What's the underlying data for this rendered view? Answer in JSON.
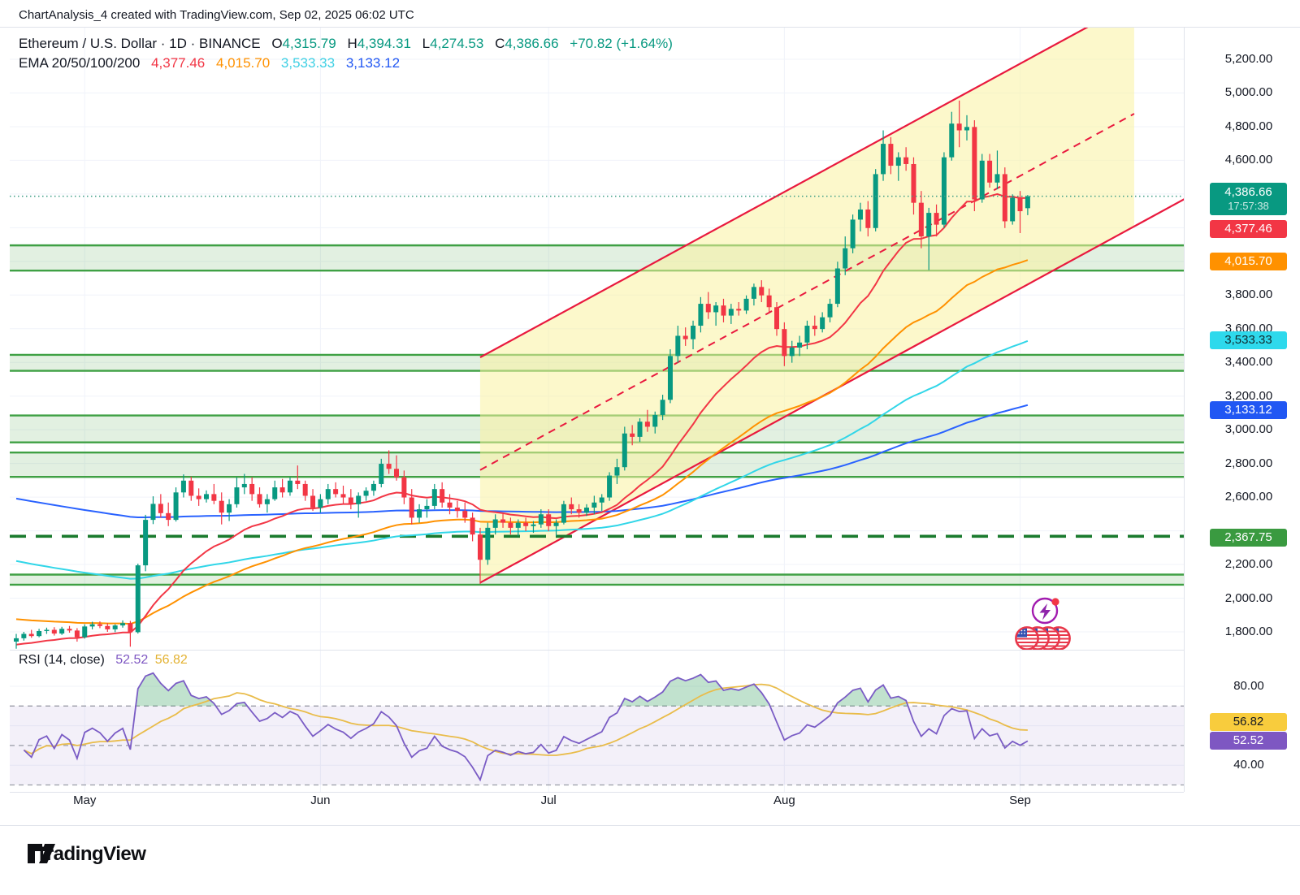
{
  "header": {
    "title": "ChartAnalysis_4 created with TradingView.com, Sep 02, 2025 06:02 UTC"
  },
  "legend": {
    "symbol": "Ethereum / U.S. Dollar · 1D · BINANCE",
    "o_label": "O",
    "o": "4,315.79",
    "h_label": "H",
    "h": "4,394.31",
    "l_label": "L",
    "l": "4,274.53",
    "c_label": "C",
    "c": "4,386.66",
    "change": "+70.82 (+1.64%)",
    "ema_label": "EMA 20/50/100/200",
    "ema20": "4,377.46",
    "ema50": "4,015.70",
    "ema100": "3,533.33",
    "ema200": "3,133.12"
  },
  "rsi_legend": {
    "label": "RSI (14, close)",
    "rsi": "52.52",
    "rsi_ma": "56.82"
  },
  "price_axis": {
    "ticks": [
      "5,200.00",
      "5,000.00",
      "4,800.00",
      "4,600.00",
      "3,800.00",
      "3,600.00",
      "3,400.00",
      "3,200.00",
      "3,000.00",
      "2,800.00",
      "2,600.00",
      "2,200.00",
      "2,000.00",
      "1,800.00"
    ],
    "badges": {
      "last": {
        "value": "4,386.66",
        "countdown": "17:57:38",
        "color": "#089981",
        "text": "#ffffff"
      },
      "ema20": {
        "value": "4,377.46",
        "color": "#f23645",
        "text": "#ffffff"
      },
      "ema50": {
        "value": "4,015.70",
        "color": "#ff9100",
        "text": "#ffffff"
      },
      "ema100": {
        "value": "3,533.33",
        "color": "#2ed9ec",
        "text": "#102a2e"
      },
      "ema200": {
        "value": "3,133.12",
        "color": "#2157f3",
        "text": "#ffffff"
      },
      "support": {
        "value": "2,367.75",
        "color": "#3a9a40",
        "text": "#ffffff"
      },
      "rsi_ma": {
        "value": "56.82",
        "color": "#f8cc3d",
        "text": "#131722"
      },
      "rsi": {
        "value": "52.52",
        "color": "#7e57c2",
        "text": "#ffffff"
      }
    }
  },
  "rsi_axis": {
    "ticks": [
      "80.00",
      "40.00"
    ]
  },
  "footer": {
    "brand": "TradingView"
  },
  "chart_data": {
    "type": "candlestick",
    "symbol": "ETHUSD",
    "exchange": "BINANCE",
    "interval": "1D",
    "start_date": "2025-04-22",
    "ylim": [
      1800,
      5200
    ],
    "last_price": 4386.66,
    "months": [
      {
        "label": "May",
        "i": 9
      },
      {
        "label": "Jun",
        "i": 40
      },
      {
        "label": "Jul",
        "i": 70
      },
      {
        "label": "Aug",
        "i": 101
      },
      {
        "label": "Sep",
        "i": 132
      }
    ],
    "grid_step": 200,
    "up_color": "#089981",
    "down_color": "#f23645",
    "support_zones": [
      [
        3945,
        4095
      ],
      [
        3350,
        3445
      ],
      [
        2925,
        3085
      ],
      [
        2720,
        2865
      ],
      [
        2080,
        2140
      ]
    ],
    "dashed_support_level": 2367.75,
    "channel": {
      "start_index": 61,
      "lower_start_price": 2092,
      "upper_start_price": 3430,
      "slope_per_day": 24.6,
      "fill_end_index": 147,
      "line_end_index": 154,
      "line_color": "#e9193e",
      "fill_color": "rgba(250,242,160,0.55)"
    },
    "ema_periods": [
      20,
      50,
      100,
      200
    ],
    "ema_seeds": [
      1720,
      1880,
      2230,
      2600
    ],
    "ema_colors": [
      "#f23645",
      "#ff9100",
      "#31d6e8",
      "#2962ff"
    ],
    "rsi": {
      "period": 14,
      "overbought": 70,
      "midline": 50,
      "oversold": 30,
      "line_color": "#7a5cc5",
      "ma_color": "#e9bc4a",
      "seed_gain": 4.2,
      "seed_loss": 6.8
    },
    "candles": [
      [
        1742,
        1788,
        1700,
        1762
      ],
      [
        1762,
        1800,
        1748,
        1788
      ],
      [
        1788,
        1812,
        1765,
        1775
      ],
      [
        1775,
        1818,
        1768,
        1805
      ],
      [
        1805,
        1825,
        1788,
        1812
      ],
      [
        1812,
        1828,
        1778,
        1790
      ],
      [
        1790,
        1830,
        1782,
        1818
      ],
      [
        1818,
        1835,
        1795,
        1808
      ],
      [
        1808,
        1822,
        1742,
        1768
      ],
      [
        1768,
        1845,
        1760,
        1832
      ],
      [
        1832,
        1860,
        1815,
        1845
      ],
      [
        1845,
        1862,
        1822,
        1835
      ],
      [
        1835,
        1852,
        1800,
        1815
      ],
      [
        1815,
        1845,
        1798,
        1838
      ],
      [
        1838,
        1868,
        1825,
        1852
      ],
      [
        1852,
        1865,
        1712,
        1798
      ],
      [
        1798,
        2205,
        1790,
        2195
      ],
      [
        2195,
        2495,
        2160,
        2465
      ],
      [
        2465,
        2605,
        2440,
        2560
      ],
      [
        2560,
        2618,
        2478,
        2505
      ],
      [
        2505,
        2568,
        2428,
        2465
      ],
      [
        2465,
        2658,
        2455,
        2628
      ],
      [
        2628,
        2735,
        2598,
        2698
      ],
      [
        2698,
        2722,
        2578,
        2608
      ],
      [
        2608,
        2652,
        2548,
        2588
      ],
      [
        2588,
        2640,
        2568,
        2618
      ],
      [
        2618,
        2678,
        2558,
        2578
      ],
      [
        2578,
        2628,
        2438,
        2508
      ],
      [
        2508,
        2588,
        2458,
        2558
      ],
      [
        2558,
        2718,
        2538,
        2658
      ],
      [
        2658,
        2738,
        2618,
        2678
      ],
      [
        2678,
        2718,
        2578,
        2618
      ],
      [
        2618,
        2658,
        2538,
        2558
      ],
      [
        2558,
        2618,
        2508,
        2588
      ],
      [
        2588,
        2698,
        2578,
        2658
      ],
      [
        2658,
        2708,
        2598,
        2628
      ],
      [
        2628,
        2718,
        2608,
        2698
      ],
      [
        2698,
        2788,
        2648,
        2678
      ],
      [
        2678,
        2698,
        2578,
        2608
      ],
      [
        2608,
        2648,
        2518,
        2538
      ],
      [
        2538,
        2618,
        2508,
        2588
      ],
      [
        2588,
        2678,
        2558,
        2648
      ],
      [
        2648,
        2688,
        2598,
        2618
      ],
      [
        2618,
        2668,
        2558,
        2598
      ],
      [
        2598,
        2648,
        2528,
        2558
      ],
      [
        2558,
        2628,
        2478,
        2608
      ],
      [
        2608,
        2658,
        2578,
        2638
      ],
      [
        2638,
        2698,
        2608,
        2678
      ],
      [
        2678,
        2828,
        2658,
        2798
      ],
      [
        2798,
        2878,
        2738,
        2768
      ],
      [
        2768,
        2848,
        2698,
        2718
      ],
      [
        2718,
        2758,
        2558,
        2598
      ],
      [
        2598,
        2648,
        2438,
        2478
      ],
      [
        2478,
        2558,
        2448,
        2528
      ],
      [
        2528,
        2588,
        2478,
        2548
      ],
      [
        2548,
        2678,
        2528,
        2648
      ],
      [
        2648,
        2688,
        2538,
        2568
      ],
      [
        2568,
        2618,
        2498,
        2538
      ],
      [
        2538,
        2578,
        2478,
        2518
      ],
      [
        2518,
        2568,
        2448,
        2478
      ],
      [
        2478,
        2508,
        2338,
        2378
      ],
      [
        2378,
        2418,
        2085,
        2228
      ],
      [
        2228,
        2448,
        2198,
        2418
      ],
      [
        2418,
        2498,
        2378,
        2468
      ],
      [
        2468,
        2508,
        2418,
        2448
      ],
      [
        2448,
        2478,
        2378,
        2418
      ],
      [
        2418,
        2468,
        2368,
        2448
      ],
      [
        2448,
        2478,
        2398,
        2428
      ],
      [
        2428,
        2458,
        2388,
        2438
      ],
      [
        2438,
        2528,
        2418,
        2498
      ],
      [
        2498,
        2528,
        2398,
        2428
      ],
      [
        2428,
        2468,
        2368,
        2448
      ],
      [
        2448,
        2578,
        2438,
        2558
      ],
      [
        2558,
        2598,
        2498,
        2528
      ],
      [
        2528,
        2558,
        2478,
        2508
      ],
      [
        2508,
        2558,
        2488,
        2538
      ],
      [
        2538,
        2608,
        2498,
        2568
      ],
      [
        2568,
        2618,
        2518,
        2598
      ],
      [
        2598,
        2748,
        2578,
        2728
      ],
      [
        2728,
        2828,
        2678,
        2778
      ],
      [
        2778,
        3018,
        2758,
        2978
      ],
      [
        2978,
        3028,
        2908,
        2958
      ],
      [
        2958,
        3068,
        2928,
        3048
      ],
      [
        3048,
        3118,
        2988,
        3018
      ],
      [
        3018,
        3108,
        2978,
        3088
      ],
      [
        3088,
        3208,
        3058,
        3178
      ],
      [
        3178,
        3478,
        3158,
        3438
      ],
      [
        3438,
        3618,
        3398,
        3558
      ],
      [
        3558,
        3608,
        3498,
        3538
      ],
      [
        3538,
        3648,
        3478,
        3618
      ],
      [
        3618,
        3788,
        3578,
        3748
      ],
      [
        3748,
        3818,
        3658,
        3698
      ],
      [
        3698,
        3758,
        3618,
        3738
      ],
      [
        3738,
        3778,
        3638,
        3678
      ],
      [
        3678,
        3748,
        3628,
        3718
      ],
      [
        3718,
        3758,
        3678,
        3708
      ],
      [
        3708,
        3798,
        3688,
        3778
      ],
      [
        3778,
        3868,
        3738,
        3848
      ],
      [
        3848,
        3888,
        3758,
        3798
      ],
      [
        3798,
        3838,
        3698,
        3728
      ],
      [
        3728,
        3758,
        3558,
        3598
      ],
      [
        3598,
        3638,
        3378,
        3438
      ],
      [
        3438,
        3528,
        3398,
        3488
      ],
      [
        3488,
        3558,
        3438,
        3518
      ],
      [
        3518,
        3648,
        3478,
        3618
      ],
      [
        3618,
        3678,
        3558,
        3598
      ],
      [
        3598,
        3698,
        3578,
        3668
      ],
      [
        3668,
        3778,
        3638,
        3748
      ],
      [
        3748,
        3998,
        3728,
        3958
      ],
      [
        3958,
        4148,
        3918,
        4078
      ],
      [
        4078,
        4278,
        4048,
        4248
      ],
      [
        4248,
        4348,
        4178,
        4308
      ],
      [
        4308,
        4358,
        4148,
        4198
      ],
      [
        4198,
        4548,
        4178,
        4518
      ],
      [
        4518,
        4778,
        4478,
        4698
      ],
      [
        4698,
        4738,
        4518,
        4568
      ],
      [
        4568,
        4648,
        4478,
        4618
      ],
      [
        4618,
        4678,
        4538,
        4578
      ],
      [
        4578,
        4618,
        4278,
        4348
      ],
      [
        4348,
        4418,
        4078,
        4148
      ],
      [
        4148,
        4318,
        3948,
        4288
      ],
      [
        4288,
        4338,
        4148,
        4218
      ],
      [
        4218,
        4648,
        4198,
        4618
      ],
      [
        4618,
        4888,
        4598,
        4818
      ],
      [
        4818,
        4955,
        4678,
        4778
      ],
      [
        4778,
        4868,
        4718,
        4798
      ],
      [
        4798,
        4838,
        4298,
        4368
      ],
      [
        4368,
        4638,
        4348,
        4598
      ],
      [
        4598,
        4638,
        4438,
        4468
      ],
      [
        4468,
        4658,
        4428,
        4518
      ],
      [
        4518,
        4558,
        4198,
        4238
      ],
      [
        4238,
        4398,
        4218,
        4378
      ],
      [
        4378,
        4418,
        4168,
        4298
      ],
      [
        4315.79,
        4394.31,
        4274.53,
        4386.66
      ]
    ]
  }
}
